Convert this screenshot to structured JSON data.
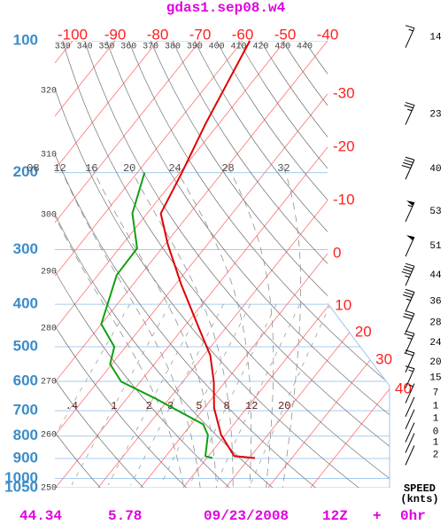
{
  "chart_data": {
    "type": "skewt",
    "title": "gdas1.sep08.w4",
    "plim": [
      100,
      1050
    ],
    "log_scale": true,
    "pticks": [
      100,
      200,
      300,
      400,
      500,
      600,
      700,
      800,
      900,
      1000,
      1050
    ],
    "tlim": [
      -100,
      -40
    ],
    "tticks": [
      -100,
      -90,
      -80,
      -70,
      -60,
      -50,
      -40,
      -30,
      -20,
      -10,
      0,
      10,
      20,
      30,
      40
    ],
    "dry_adiabats": [
      250,
      260,
      270,
      280,
      290,
      300,
      310,
      320,
      330,
      340,
      350,
      360,
      370,
      380,
      390,
      400,
      410,
      420,
      430,
      440
    ],
    "moist_adiabats": [
      {
        "value": 8,
        "label": "08"
      },
      12,
      16,
      20,
      24,
      28,
      32
    ],
    "mixing_ratios": [
      {
        "value": 0.4,
        "label": ".4"
      },
      1,
      2,
      3,
      5,
      8,
      12,
      20
    ],
    "temperature": {
      "color": "#e00000",
      "pressure": [
        100,
        155,
        200,
        248,
        292,
        360,
        454,
        523,
        601,
        690,
        795,
        889,
        898
      ],
      "values": [
        -58.3,
        -53.1,
        -49.5,
        -46.8,
        -39.3,
        -28.7,
        -16.2,
        -8.5,
        -2.7,
        2.3,
        9,
        16.1,
        21.3
      ]
    },
    "dewpoint": {
      "color": "#10a010",
      "pressure": [
        200,
        248,
        298,
        343,
        444,
        500,
        548,
        601,
        655,
        752,
        795,
        889,
        898
      ],
      "values": [
        -58.3,
        -53.5,
        -45.8,
        -45.6,
        -40,
        -32.7,
        -30.4,
        -24.5,
        -13.6,
        2.8,
        5.9,
        9.3,
        11.3
      ]
    },
    "wind": {
      "title": "SPEED",
      "units": "(knts)",
      "pressure": [
        98,
        147,
        196,
        245,
        294,
        343,
        393,
        440,
        489,
        541,
        588,
        636,
        683,
        729,
        781,
        826,
        881
      ],
      "speed": [
        14,
        23,
        40,
        53,
        51,
        44,
        36,
        28,
        24,
        20,
        15,
        7,
        1,
        1,
        0,
        1,
        2
      ]
    },
    "footer": [
      "44.34",
      "5.78",
      "09/23/2008",
      "12Z",
      "+",
      "0hr"
    ]
  }
}
